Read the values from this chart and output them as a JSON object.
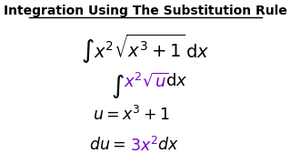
{
  "title": "Integration Using The Substitution Rule",
  "title_fontsize": 10,
  "title_fontweight": "bold",
  "background_color": "#ffffff",
  "black": "#000000",
  "purple": "#7700cc"
}
